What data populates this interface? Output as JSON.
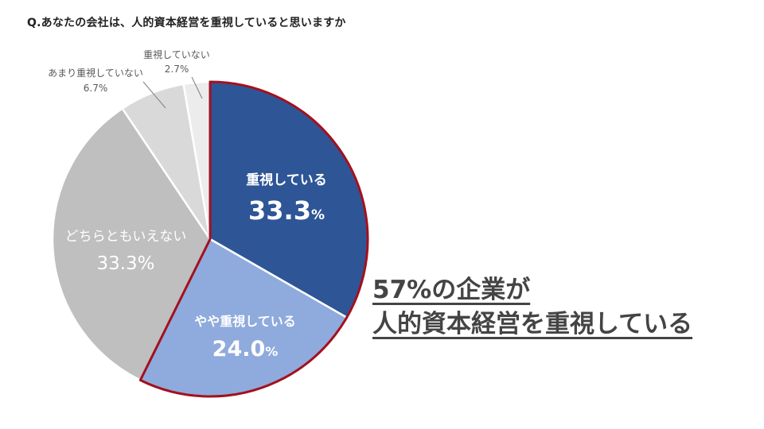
{
  "question": "Q.あなたの会社は、人的資本経営を重視していると思いますか",
  "headline": {
    "line1": "57%の企業が",
    "line2": "人的資本経営を重視している"
  },
  "chart_data": {
    "type": "pie",
    "start_angle_deg": 0,
    "direction": "clockwise",
    "highlight_color": "#a3101e",
    "slices": [
      {
        "label": "重視している",
        "value": 33.3,
        "value_text": "33.3",
        "unit": "%",
        "color": "#2e5596",
        "text_color": "#ffffff",
        "highlight": true
      },
      {
        "label": "やや重視している",
        "value": 24.0,
        "value_text": "24.0",
        "unit": "%",
        "color": "#8faadc",
        "text_color": "#ffffff",
        "highlight": true
      },
      {
        "label": "どちらともいえない",
        "value": 33.3,
        "value_text": "33.3",
        "unit": "%",
        "color": "#bfbfbf",
        "text_color": "#ffffff",
        "highlight": false
      },
      {
        "label": "あまり重視していない",
        "value": 6.7,
        "value_text": "6.7",
        "unit": "%",
        "color": "#d9d9d9",
        "text_color": "#595959",
        "highlight": false
      },
      {
        "label": "重視していない",
        "value": 2.7,
        "value_text": "2.7",
        "unit": "%",
        "color": "#ececec",
        "text_color": "#595959",
        "highlight": false
      }
    ]
  }
}
